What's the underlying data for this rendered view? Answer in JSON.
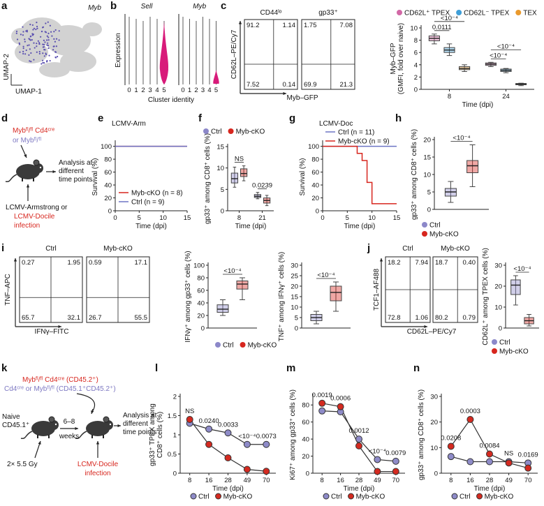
{
  "panel_letters": [
    "a",
    "b",
    "c",
    "d",
    "e",
    "f",
    "g",
    "h",
    "i",
    "j",
    "k",
    "l",
    "m",
    "n"
  ],
  "umap": {
    "gene": "Myb",
    "xlabel": "UMAP-1",
    "ylabel": "UMAP-2"
  },
  "violin": {
    "genes": [
      "Sell",
      "Myb"
    ],
    "categories": [
      0,
      1,
      2,
      3,
      4,
      5
    ],
    "ylabel": "Expression",
    "xlabel": "Cluster identity"
  },
  "flow_plots": {
    "c": {
      "ylabel": "CD62L–PE/Cy7",
      "xlabel": "Myb–GFP",
      "plots": [
        {
          "title": "CD44ˡᵒ",
          "quadrants": [
            "91.2",
            "1.14",
            "7.52",
            "0.14"
          ]
        },
        {
          "title": "gp33⁺",
          "quadrants": [
            "1.75",
            "7.08",
            "69.9",
            "21.3"
          ]
        }
      ]
    },
    "i": {
      "ylabel": "TNF–APC",
      "xlabel": "IFNγ–FITC",
      "plots": [
        {
          "title": "Ctrl",
          "quadrants": [
            "0.27",
            "1.95",
            "65.7",
            "32.1"
          ]
        },
        {
          "title": "Myb-cKO",
          "quadrants": [
            "0.59",
            "17.1",
            "26.7",
            "55.5"
          ]
        }
      ]
    },
    "j": {
      "ylabel": "TCF1–AF488",
      "xlabel": "CD62L–PE/Cy7",
      "plots": [
        {
          "title": "Ctrl",
          "quadrants": [
            "18.2",
            "7.94",
            "72.8",
            "1.06"
          ]
        },
        {
          "title": "Myb-cKO",
          "quadrants": [
            "18.7",
            "0.40",
            "80.2",
            "0.79"
          ]
        }
      ]
    }
  },
  "diagram_d": {
    "genotype": "Mybᶠˡ/ᶠˡ Cd4ᶜʳᵉ",
    "control": "or Mybᶠˡ/ᶠˡ",
    "analysis": [
      "Analysis at",
      "different",
      "time points"
    ],
    "infection": [
      "LCMV-Armstrong or",
      "LCMV-Docile",
      "infection"
    ]
  },
  "diagram_k": {
    "donor1": "Mybᶠˡ/ᶠˡ Cd4ᶜʳᵉ (CD45.2⁺)",
    "donor2": "Cd4ᶜʳᵉ or Mybᶠˡ/ᶠˡ (CD45.1⁺CD45.2⁺)",
    "recipient": [
      "Naive",
      "CD45.1⁺"
    ],
    "interval": [
      "6–8",
      "weeks"
    ],
    "irradiation": "2× 5.5 Gy",
    "infection": [
      "LCMV-Docile",
      "infection"
    ],
    "analysis": [
      "Analysis at",
      "different",
      "time points"
    ]
  },
  "chart_data": [
    {
      "type": "box",
      "ylabel": [
        "Myb–GFP",
        "(GMFI, fold over naive)"
      ],
      "xlabel": "Time (dpi)",
      "categories": [
        8,
        24
      ],
      "ylim": [
        0,
        10
      ],
      "yticks": [
        0,
        2,
        4,
        6,
        8,
        10
      ],
      "legend": "top",
      "series": [
        {
          "name": "CD62L⁺ TPEX",
          "color": "#d268a6",
          "min": [
            7.4,
            3.7
          ],
          "q1": [
            7.9,
            3.9
          ],
          "median": [
            8.3,
            4.1
          ],
          "q3": [
            8.7,
            4.3
          ],
          "max": [
            9.0,
            4.4
          ]
        },
        {
          "name": "CD62L⁻ TPEX",
          "color": "#3f9fd8",
          "min": [
            5.5,
            2.7
          ],
          "q1": [
            6.0,
            2.9
          ],
          "median": [
            6.4,
            3.1
          ],
          "q3": [
            6.8,
            3.3
          ],
          "max": [
            7.4,
            3.4
          ]
        },
        {
          "name": "TEX",
          "color": "#ea9a2d",
          "min": [
            2.9,
            0.6
          ],
          "q1": [
            3.2,
            0.75
          ],
          "median": [
            3.4,
            0.85
          ],
          "q3": [
            3.7,
            0.95
          ],
          "max": [
            4.0,
            1.0
          ]
        }
      ],
      "annotations": [
        [
          "0.0111",
          "<10⁻⁴"
        ],
        [
          "<10⁻⁴",
          "<10⁻⁴"
        ]
      ]
    },
    {
      "type": "line",
      "title": "LCMV-Arm",
      "ylabel": "Survival (%)",
      "xlabel": "Time (dpi)",
      "xlim": [
        0,
        15
      ],
      "xticks": [
        0,
        5,
        10,
        15
      ],
      "ylim": [
        0,
        105
      ],
      "yticks": [
        0,
        20,
        40,
        60,
        80,
        100
      ],
      "legend": "lower right",
      "series": [
        {
          "name": "Myb-cKO (n = 8)",
          "color": "#d7261e",
          "x": [
            0,
            15
          ],
          "values": [
            100,
            100
          ]
        },
        {
          "name": "Ctrl (n = 9)",
          "color": "#6d74c4",
          "x": [
            0,
            15
          ],
          "values": [
            100,
            100
          ]
        }
      ]
    },
    {
      "type": "box",
      "ylabel": "gp33⁺ among CD8⁺ cells (%)",
      "xlabel": "Time (dpi)",
      "categories": [
        8,
        21
      ],
      "ylim": [
        0,
        15
      ],
      "yticks": [
        0,
        5,
        10,
        15
      ],
      "legend": "top",
      "series": [
        {
          "name": "Ctrl",
          "color": "#8c88c9",
          "min": [
            5.5,
            2.8
          ],
          "q1": [
            6.5,
            3.1
          ],
          "median": [
            7.5,
            3.4
          ],
          "q3": [
            8.8,
            3.8
          ],
          "max": [
            10.2,
            4.3
          ]
        },
        {
          "name": "Myb-cKO",
          "color": "#d7261e",
          "min": [
            7.0,
            1.2
          ],
          "q1": [
            8.0,
            1.8
          ],
          "median": [
            8.7,
            2.4
          ],
          "q3": [
            9.8,
            3.0
          ],
          "max": [
            10.5,
            3.6
          ]
        }
      ],
      "annotations": [
        "NS",
        "0.0239"
      ]
    },
    {
      "type": "line",
      "title": "LCMV-Doc",
      "ylabel": "Survival (%)",
      "xlabel": "Time (dpi)",
      "xlim": [
        0,
        15
      ],
      "xticks": [
        0,
        5,
        10,
        15
      ],
      "ylim": [
        0,
        105
      ],
      "yticks": [
        0,
        20,
        40,
        60,
        80,
        100
      ],
      "legend": "upper left",
      "series": [
        {
          "name": "Ctrl (n = 11)",
          "color": "#6d74c4",
          "x": [
            0,
            15
          ],
          "values": [
            100,
            100
          ]
        },
        {
          "name": "Myb-cKO (n = 9)",
          "color": "#d7261e",
          "x": [
            0,
            7,
            7,
            8,
            8,
            9,
            9,
            10,
            10,
            15
          ],
          "values": [
            100,
            100,
            89,
            89,
            78,
            78,
            44,
            44,
            11,
            11
          ]
        }
      ]
    },
    {
      "type": "box",
      "ylabel": "gp33⁺ among CD8⁺ cells (%)",
      "categories": [
        null
      ],
      "ylim": [
        0,
        20
      ],
      "yticks": [
        0,
        5,
        10,
        15,
        20
      ],
      "legend": "bottom",
      "series": [
        {
          "name": "Ctrl",
          "color": "#8c88c9",
          "min": [
            2
          ],
          "q1": [
            3.8
          ],
          "median": [
            5
          ],
          "q3": [
            6
          ],
          "max": [
            8
          ]
        },
        {
          "name": "Myb-cKO",
          "color": "#d7261e",
          "min": [
            6.5
          ],
          "q1": [
            10.5
          ],
          "median": [
            12.5
          ],
          "q3": [
            14
          ],
          "max": [
            18.5
          ]
        }
      ],
      "annotations": [
        "<10⁻⁴"
      ]
    },
    {
      "type": "box",
      "ylabel": "IFNγ⁺ among gp33⁺ cells (%)",
      "categories": [
        null
      ],
      "ylim": [
        0,
        100
      ],
      "yticks": [
        0,
        20,
        40,
        60,
        80,
        100
      ],
      "legend": "bottom",
      "series": [
        {
          "name": "Ctrl",
          "color": "#8c88c9",
          "min": [
            20
          ],
          "q1": [
            25
          ],
          "median": [
            30
          ],
          "q3": [
            37
          ],
          "max": [
            45
          ]
        },
        {
          "name": "Myb-cKO",
          "color": "#d7261e",
          "min": [
            45
          ],
          "q1": [
            62
          ],
          "median": [
            70
          ],
          "q3": [
            75
          ],
          "max": [
            80
          ]
        }
      ],
      "annotations": [
        "<10⁻⁴"
      ]
    },
    {
      "type": "box",
      "ylabel": "TNF⁺ among IFNγ⁺ cells (%)",
      "categories": [
        null
      ],
      "ylim": [
        0,
        30
      ],
      "yticks": [
        0,
        5,
        10,
        15,
        20,
        25,
        30
      ],
      "series": [
        {
          "color": "#8c88c9",
          "min": [
            2
          ],
          "q1": [
            3.5
          ],
          "median": [
            5
          ],
          "q3": [
            6.5
          ],
          "max": [
            8
          ]
        },
        {
          "color": "#d7261e",
          "min": [
            8
          ],
          "q1": [
            13
          ],
          "median": [
            17
          ],
          "q3": [
            20
          ],
          "max": [
            22
          ]
        }
      ],
      "annotations": [
        "<10⁻⁴"
      ]
    },
    {
      "type": "box",
      "ylabel": "CD62L⁺ among TPEX cells (%)",
      "categories": [
        null
      ],
      "ylim": [
        0,
        30
      ],
      "yticks": [
        0,
        10,
        20,
        30
      ],
      "legend": "bottom",
      "series": [
        {
          "name": "Ctrl",
          "color": "#8c88c9",
          "min": [
            11
          ],
          "q1": [
            16
          ],
          "median": [
            20.5
          ],
          "q3": [
            23
          ],
          "max": [
            25
          ]
        },
        {
          "name": "Myb-cKO",
          "color": "#d7261e",
          "min": [
            1
          ],
          "q1": [
            2
          ],
          "median": [
            3.5
          ],
          "q3": [
            5
          ],
          "max": [
            6.5
          ]
        }
      ],
      "annotations": [
        "<10⁻⁴"
      ]
    },
    {
      "type": "line",
      "markers": true,
      "ylabel": [
        "gp33⁺ TPEX among",
        "CD8⁺ cells (%)"
      ],
      "xlabel": "Time (dpi)",
      "categories": [
        8,
        16,
        28,
        49,
        70
      ],
      "ylim": [
        0,
        2
      ],
      "yticks": [
        0,
        0.5,
        1,
        1.5,
        2
      ],
      "legend": "bottom",
      "series": [
        {
          "name": "Ctrl",
          "color": "#8e8bc8",
          "values": [
            1.3,
            1.15,
            1.05,
            0.75,
            0.75
          ]
        },
        {
          "name": "Myb-cKO",
          "color": "#d42a20",
          "values": [
            1.4,
            0.75,
            0.4,
            0.1,
            0.05
          ]
        }
      ],
      "annotations": [
        "NS",
        "0.0240",
        "0.0033",
        "<10⁻⁴",
        "0.0073"
      ]
    },
    {
      "type": "line",
      "markers": true,
      "ylabel": "Ki67⁺ among gp33⁺ cells (%)",
      "xlabel": "Time (dpi)",
      "categories": [
        8,
        16,
        28,
        49,
        70
      ],
      "ylim": [
        0,
        90
      ],
      "yticks": [
        0,
        20,
        40,
        60,
        80
      ],
      "legend": "bottom",
      "series": [
        {
          "name": "Ctrl",
          "color": "#8e8bc8",
          "values": [
            73,
            72,
            40,
            16,
            14
          ]
        },
        {
          "name": "Myb-cKO",
          "color": "#d42a20",
          "values": [
            82,
            78,
            32,
            2,
            2
          ]
        }
      ],
      "annotations": [
        "0.0019",
        "0.0006",
        "0.0012",
        "<10⁻⁴",
        "0.0079"
      ]
    },
    {
      "type": "line",
      "markers": true,
      "ylabel": "gp33⁺ among CD8⁺ cells (%)",
      "xlabel": "Time (dpi)",
      "categories": [
        8,
        16,
        28,
        49,
        70
      ],
      "ylim": [
        0,
        30
      ],
      "yticks": [
        0,
        10,
        20,
        30
      ],
      "legend": "bottom",
      "series": [
        {
          "name": "Ctrl",
          "color": "#8e8bc8",
          "values": [
            6.5,
            4.5,
            4.5,
            4.5,
            4
          ]
        },
        {
          "name": "Myb-cKO",
          "color": "#d42a20",
          "values": [
            10.5,
            21,
            7.5,
            4,
            2
          ]
        }
      ],
      "annotations": [
        "0.0208",
        "0.0003",
        "0.0084",
        "NS",
        "0.0169"
      ]
    }
  ]
}
